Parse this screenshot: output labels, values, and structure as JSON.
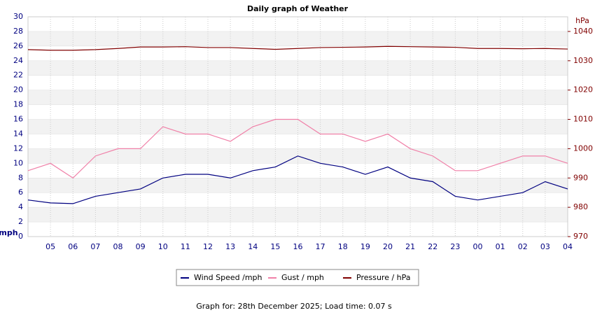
{
  "chart_data": {
    "type": "line",
    "title": "Daily graph of Weather",
    "ylabel": "mph",
    "y2label": "hPa",
    "footer": "Graph for: 28th December 2025; Load time: 0.07 s",
    "x": [
      0,
      1,
      2,
      3,
      4,
      5,
      6,
      7,
      8,
      9,
      10,
      11,
      12,
      13,
      14,
      15,
      16,
      17,
      18,
      19,
      20,
      21,
      22,
      23,
      24
    ],
    "xlim": [
      0,
      24
    ],
    "xticks": [
      {
        "value": 1,
        "label": "05"
      },
      {
        "value": 2,
        "label": "06"
      },
      {
        "value": 3,
        "label": "07"
      },
      {
        "value": 4,
        "label": "08"
      },
      {
        "value": 5,
        "label": "09"
      },
      {
        "value": 6,
        "label": "10"
      },
      {
        "value": 7,
        "label": "11"
      },
      {
        "value": 8,
        "label": "12"
      },
      {
        "value": 9,
        "label": "13"
      },
      {
        "value": 10,
        "label": "14"
      },
      {
        "value": 11,
        "label": "15"
      },
      {
        "value": 12,
        "label": "16"
      },
      {
        "value": 13,
        "label": "17"
      },
      {
        "value": 14,
        "label": "18"
      },
      {
        "value": 15,
        "label": "19"
      },
      {
        "value": 16,
        "label": "20"
      },
      {
        "value": 17,
        "label": "21"
      },
      {
        "value": 18,
        "label": "22"
      },
      {
        "value": 19,
        "label": "23"
      },
      {
        "value": 20,
        "label": "00"
      },
      {
        "value": 21,
        "label": "01"
      },
      {
        "value": 22,
        "label": "02"
      },
      {
        "value": 23,
        "label": "03"
      },
      {
        "value": 24,
        "label": "04"
      }
    ],
    "ylim": [
      0,
      30
    ],
    "yticks": [
      0,
      2,
      4,
      6,
      8,
      10,
      12,
      14,
      16,
      18,
      20,
      22,
      24,
      26,
      28,
      30
    ],
    "y2lim": [
      970,
      1045
    ],
    "y2ticks": [
      970,
      980,
      990,
      1000,
      1010,
      1020,
      1030,
      1040
    ],
    "grid": true,
    "series": [
      {
        "name": "Wind Speed /mph",
        "color": "#000080",
        "values": [
          5,
          4.6,
          4.5,
          5.5,
          6,
          6.5,
          8,
          8.5,
          8.5,
          8,
          9,
          9.5,
          11,
          10,
          9.5,
          8.5,
          9.5,
          8,
          7.5,
          5.5,
          5,
          5.5,
          6,
          7.5,
          6.5
        ]
      },
      {
        "name": "Gust / mph",
        "color": "#f080a8",
        "values": [
          9,
          10,
          8,
          11,
          12,
          12,
          15,
          14,
          14,
          13,
          15,
          16,
          16,
          14,
          14,
          13,
          14,
          12,
          11,
          9,
          9,
          10,
          11,
          11,
          10
        ]
      },
      {
        "name": "Pressure / hPa",
        "color": "#800000",
        "axis": "y2",
        "values": [
          1033.8,
          1033.6,
          1033.6,
          1033.8,
          1034.2,
          1034.7,
          1034.7,
          1034.8,
          1034.5,
          1034.5,
          1034.2,
          1033.9,
          1034.2,
          1034.5,
          1034.6,
          1034.7,
          1034.9,
          1034.8,
          1034.7,
          1034.6,
          1034.2,
          1034.2,
          1034.1,
          1034.2,
          1034.0
        ]
      }
    ]
  }
}
